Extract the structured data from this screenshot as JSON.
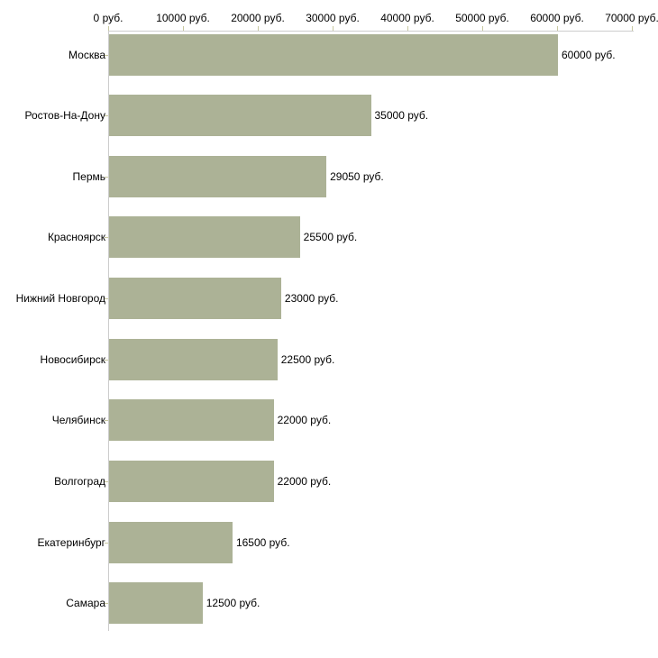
{
  "chart_data": {
    "type": "bar",
    "orientation": "horizontal",
    "axis_position": "top",
    "grid": false,
    "legend": "none",
    "categories": [
      "Москва",
      "Ростов-На-Дону",
      "Пермь",
      "Красноярск",
      "Нижний Новгород",
      "Новосибирск",
      "Челябинск",
      "Волгоград",
      "Екатеринбург",
      "Самара"
    ],
    "values": [
      60000,
      35000,
      29050,
      25500,
      23000,
      22500,
      22000,
      22000,
      16500,
      12500
    ],
    "value_labels": [
      "60000 руб.",
      "35000 руб.",
      "29050 руб.",
      "25500 руб.",
      "23000 руб.",
      "22500 руб.",
      "22000 руб.",
      "22000 руб.",
      "16500 руб.",
      "12500 руб."
    ],
    "x_tick_values": [
      0,
      10000,
      20000,
      30000,
      40000,
      50000,
      60000,
      70000
    ],
    "x_tick_labels": [
      "0 руб.",
      "10000 руб.",
      "20000 руб.",
      "30000 руб.",
      "40000 руб.",
      "50000 руб.",
      "60000 руб.",
      "70000 руб."
    ],
    "xlim": [
      0,
      70000
    ],
    "colors": {
      "bar": "#acb296",
      "axis_line": "#cccccc",
      "tick": "#c8c8a0",
      "text": "#000000",
      "background": "#ffffff"
    }
  }
}
